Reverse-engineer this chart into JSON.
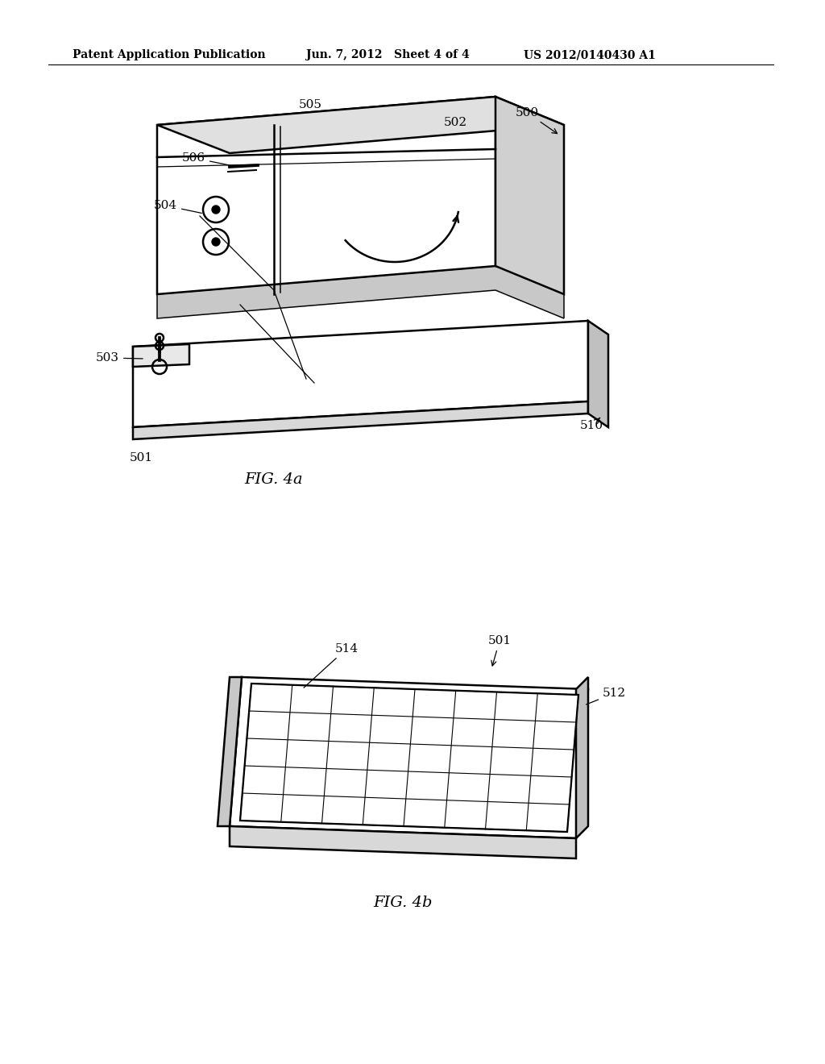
{
  "background_color": "#ffffff",
  "header_left": "Patent Application Publication",
  "header_center": "Jun. 7, 2012   Sheet 4 of 4",
  "header_right": "US 2012/0140430 A1",
  "fig4a_label": "FIG. 4a",
  "fig4b_label": "FIG. 4b",
  "line_color": "#000000",
  "line_width": 1.8,
  "annotation_fontsize": 11,
  "header_fontsize": 10
}
